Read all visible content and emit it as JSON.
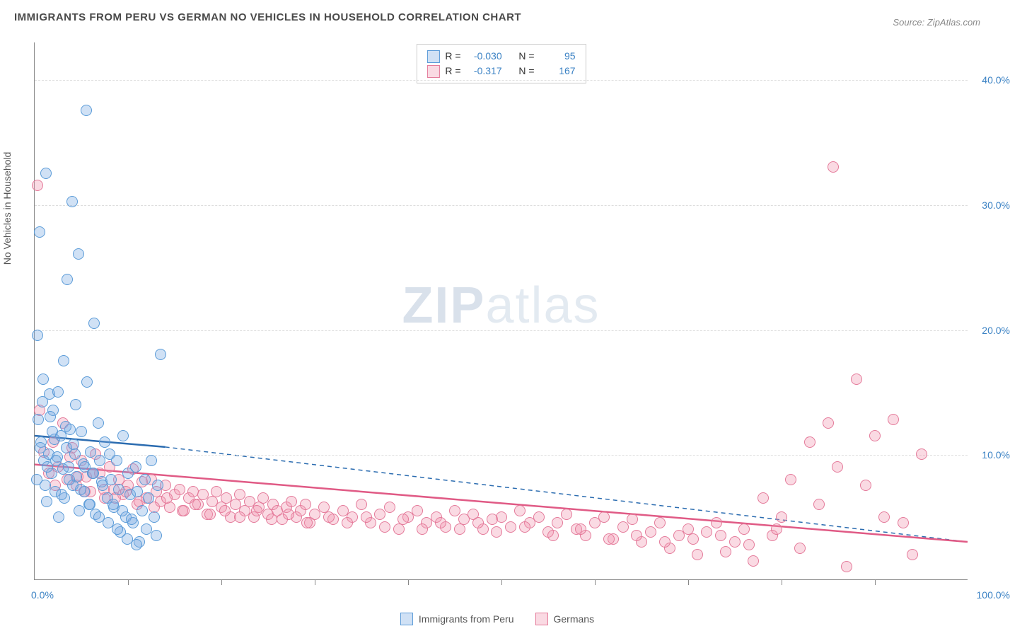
{
  "title": "IMMIGRANTS FROM PERU VS GERMAN NO VEHICLES IN HOUSEHOLD CORRELATION CHART",
  "source": "Source: ZipAtlas.com",
  "y_axis_title": "No Vehicles in Household",
  "watermark_bold": "ZIP",
  "watermark_light": "atlas",
  "x_range": [
    0,
    100
  ],
  "y_range": [
    0,
    43
  ],
  "x_ticks_label_left": "0.0%",
  "x_ticks_label_right": "100.0%",
  "x_tick_positions": [
    0,
    10,
    20,
    30,
    40,
    50,
    60,
    70,
    80,
    90,
    100
  ],
  "y_grid": [
    {
      "val": 10,
      "label": "10.0%"
    },
    {
      "val": 20,
      "label": "20.0%"
    },
    {
      "val": 30,
      "label": "30.0%"
    },
    {
      "val": 40,
      "label": "40.0%"
    }
  ],
  "series": [
    {
      "name": "Immigrants from Peru",
      "key": "peru",
      "fill": "rgba(120,170,225,0.35)",
      "stroke": "#5a9bd8",
      "line_color": "#2b6cb0",
      "r_value": "-0.030",
      "n_value": "95",
      "trend": {
        "x1": 0,
        "y1": 11.5,
        "x2": 14,
        "y2": 10.6,
        "dash_x2": 100,
        "dash_y2": 3.0
      }
    },
    {
      "name": "Germans",
      "key": "german",
      "fill": "rgba(240,150,175,0.35)",
      "stroke": "#e47a9a",
      "line_color": "#e05a85",
      "r_value": "-0.317",
      "n_value": "167",
      "trend": {
        "x1": 0,
        "y1": 9.2,
        "x2": 100,
        "y2": 3.0
      }
    }
  ],
  "legend_label_r": "R =",
  "legend_label_n": "N =",
  "points_peru": [
    [
      0.3,
      19.5
    ],
    [
      0.5,
      27.8
    ],
    [
      0.7,
      11.0
    ],
    [
      0.8,
      14.2
    ],
    [
      1.0,
      9.5
    ],
    [
      1.2,
      32.5
    ],
    [
      1.3,
      6.2
    ],
    [
      1.5,
      10.0
    ],
    [
      1.6,
      14.8
    ],
    [
      1.8,
      8.5
    ],
    [
      2.0,
      13.5
    ],
    [
      2.1,
      11.2
    ],
    [
      2.2,
      7.0
    ],
    [
      2.4,
      9.8
    ],
    [
      2.5,
      15.0
    ],
    [
      2.6,
      5.0
    ],
    [
      2.8,
      11.5
    ],
    [
      3.0,
      8.8
    ],
    [
      3.1,
      17.5
    ],
    [
      3.2,
      6.5
    ],
    [
      3.4,
      10.5
    ],
    [
      3.5,
      24.0
    ],
    [
      3.6,
      9.0
    ],
    [
      3.8,
      12.0
    ],
    [
      4.0,
      30.2
    ],
    [
      4.1,
      7.5
    ],
    [
      4.2,
      10.8
    ],
    [
      4.4,
      14.0
    ],
    [
      4.5,
      8.2
    ],
    [
      4.7,
      26.0
    ],
    [
      4.8,
      5.5
    ],
    [
      5.0,
      11.8
    ],
    [
      5.2,
      9.2
    ],
    [
      5.3,
      7.0
    ],
    [
      5.5,
      37.5
    ],
    [
      5.6,
      15.8
    ],
    [
      5.8,
      6.0
    ],
    [
      6.0,
      10.2
    ],
    [
      6.2,
      8.5
    ],
    [
      6.4,
      20.5
    ],
    [
      6.5,
      5.2
    ],
    [
      6.8,
      12.5
    ],
    [
      7.0,
      9.5
    ],
    [
      7.2,
      7.8
    ],
    [
      7.5,
      11.0
    ],
    [
      7.8,
      6.5
    ],
    [
      8.0,
      10.0
    ],
    [
      8.2,
      8.0
    ],
    [
      8.5,
      5.8
    ],
    [
      8.8,
      9.5
    ],
    [
      9.0,
      7.2
    ],
    [
      9.2,
      3.8
    ],
    [
      9.5,
      11.5
    ],
    [
      9.8,
      5.0
    ],
    [
      10.0,
      8.5
    ],
    [
      10.2,
      6.8
    ],
    [
      10.5,
      4.5
    ],
    [
      10.8,
      9.0
    ],
    [
      11.0,
      7.0
    ],
    [
      11.2,
      3.0
    ],
    [
      11.5,
      5.5
    ],
    [
      11.8,
      8.0
    ],
    [
      12.0,
      4.0
    ],
    [
      12.2,
      6.5
    ],
    [
      12.5,
      9.5
    ],
    [
      12.8,
      5.0
    ],
    [
      13.0,
      3.5
    ],
    [
      13.2,
      7.5
    ],
    [
      13.5,
      18.0
    ],
    [
      0.4,
      12.8
    ],
    [
      0.9,
      16.0
    ],
    [
      1.4,
      9.0
    ],
    [
      1.9,
      11.8
    ],
    [
      0.2,
      8.0
    ],
    [
      0.6,
      10.5
    ],
    [
      1.1,
      7.5
    ],
    [
      1.7,
      13.0
    ],
    [
      2.3,
      9.5
    ],
    [
      2.9,
      6.8
    ],
    [
      3.3,
      12.2
    ],
    [
      3.7,
      8.0
    ],
    [
      4.3,
      10.0
    ],
    [
      4.9,
      7.2
    ],
    [
      5.4,
      9.0
    ],
    [
      5.9,
      6.0
    ],
    [
      6.3,
      8.5
    ],
    [
      6.9,
      5.0
    ],
    [
      7.3,
      7.5
    ],
    [
      7.9,
      4.5
    ],
    [
      8.4,
      6.0
    ],
    [
      8.9,
      4.0
    ],
    [
      9.4,
      5.5
    ],
    [
      9.9,
      3.2
    ],
    [
      10.4,
      4.8
    ],
    [
      10.9,
      2.8
    ]
  ],
  "points_german": [
    [
      0.3,
      31.5
    ],
    [
      0.5,
      13.5
    ],
    [
      1.0,
      10.2
    ],
    [
      1.5,
      8.5
    ],
    [
      2.0,
      11.0
    ],
    [
      2.5,
      9.0
    ],
    [
      3.0,
      12.5
    ],
    [
      3.5,
      8.0
    ],
    [
      4.0,
      10.5
    ],
    [
      4.5,
      7.5
    ],
    [
      5.0,
      9.5
    ],
    [
      5.5,
      8.2
    ],
    [
      6.0,
      7.0
    ],
    [
      6.5,
      10.0
    ],
    [
      7.0,
      8.5
    ],
    [
      7.5,
      6.5
    ],
    [
      8.0,
      9.0
    ],
    [
      8.5,
      7.2
    ],
    [
      9.0,
      8.0
    ],
    [
      9.5,
      6.8
    ],
    [
      10.0,
      7.5
    ],
    [
      10.5,
      8.8
    ],
    [
      11.0,
      6.0
    ],
    [
      11.5,
      7.8
    ],
    [
      12.0,
      6.5
    ],
    [
      12.5,
      8.0
    ],
    [
      13.0,
      7.0
    ],
    [
      13.5,
      6.2
    ],
    [
      14.0,
      7.5
    ],
    [
      14.5,
      5.8
    ],
    [
      15.0,
      6.8
    ],
    [
      15.5,
      7.2
    ],
    [
      16.0,
      5.5
    ],
    [
      16.5,
      6.5
    ],
    [
      17.0,
      7.0
    ],
    [
      17.5,
      6.0
    ],
    [
      18.0,
      6.8
    ],
    [
      18.5,
      5.2
    ],
    [
      19.0,
      6.2
    ],
    [
      19.5,
      7.0
    ],
    [
      20.0,
      5.8
    ],
    [
      20.5,
      6.5
    ],
    [
      21.0,
      5.0
    ],
    [
      21.5,
      6.0
    ],
    [
      22.0,
      6.8
    ],
    [
      22.5,
      5.5
    ],
    [
      23.0,
      6.2
    ],
    [
      23.5,
      5.0
    ],
    [
      24.0,
      5.8
    ],
    [
      24.5,
      6.5
    ],
    [
      25.0,
      5.2
    ],
    [
      25.5,
      6.0
    ],
    [
      26.0,
      5.5
    ],
    [
      26.5,
      4.8
    ],
    [
      27.0,
      5.8
    ],
    [
      27.5,
      6.2
    ],
    [
      28.0,
      5.0
    ],
    [
      28.5,
      5.5
    ],
    [
      29.0,
      6.0
    ],
    [
      29.5,
      4.5
    ],
    [
      30.0,
      5.2
    ],
    [
      31.0,
      5.8
    ],
    [
      32.0,
      4.8
    ],
    [
      33.0,
      5.5
    ],
    [
      34.0,
      5.0
    ],
    [
      35.0,
      6.0
    ],
    [
      36.0,
      4.5
    ],
    [
      37.0,
      5.2
    ],
    [
      38.0,
      5.8
    ],
    [
      39.0,
      4.0
    ],
    [
      40.0,
      5.0
    ],
    [
      41.0,
      5.5
    ],
    [
      42.0,
      4.5
    ],
    [
      43.0,
      5.0
    ],
    [
      44.0,
      4.2
    ],
    [
      45.0,
      5.5
    ],
    [
      46.0,
      4.8
    ],
    [
      47.0,
      5.2
    ],
    [
      48.0,
      4.0
    ],
    [
      49.0,
      4.8
    ],
    [
      50.0,
      5.0
    ],
    [
      51.0,
      4.2
    ],
    [
      52.0,
      5.5
    ],
    [
      53.0,
      4.5
    ],
    [
      54.0,
      5.0
    ],
    [
      55.0,
      3.8
    ],
    [
      56.0,
      4.5
    ],
    [
      57.0,
      5.2
    ],
    [
      58.0,
      4.0
    ],
    [
      59.0,
      3.5
    ],
    [
      60.0,
      4.5
    ],
    [
      61.0,
      5.0
    ],
    [
      62.0,
      3.2
    ],
    [
      63.0,
      4.2
    ],
    [
      64.0,
      4.8
    ],
    [
      65.0,
      3.0
    ],
    [
      66.0,
      3.8
    ],
    [
      67.0,
      4.5
    ],
    [
      68.0,
      2.5
    ],
    [
      69.0,
      3.5
    ],
    [
      70.0,
      4.0
    ],
    [
      71.0,
      2.0
    ],
    [
      72.0,
      3.8
    ],
    [
      73.0,
      4.5
    ],
    [
      74.0,
      2.2
    ],
    [
      75.0,
      3.0
    ],
    [
      76.0,
      4.0
    ],
    [
      77.0,
      1.5
    ],
    [
      78.0,
      6.5
    ],
    [
      79.0,
      3.5
    ],
    [
      80.0,
      5.0
    ],
    [
      81.0,
      8.0
    ],
    [
      82.0,
      2.5
    ],
    [
      83.0,
      11.0
    ],
    [
      84.0,
      6.0
    ],
    [
      85.0,
      12.5
    ],
    [
      86.0,
      9.0
    ],
    [
      87.0,
      1.0
    ],
    [
      88.0,
      16.0
    ],
    [
      89.0,
      7.5
    ],
    [
      90.0,
      11.5
    ],
    [
      91.0,
      5.0
    ],
    [
      92.0,
      12.8
    ],
    [
      93.0,
      4.5
    ],
    [
      94.0,
      2.0
    ],
    [
      95.0,
      10.0
    ],
    [
      85.5,
      33.0
    ],
    [
      2.2,
      7.5
    ],
    [
      3.8,
      9.8
    ],
    [
      4.6,
      8.2
    ],
    [
      5.4,
      7.0
    ],
    [
      6.2,
      8.5
    ],
    [
      7.4,
      7.2
    ],
    [
      8.6,
      6.5
    ],
    [
      9.8,
      7.0
    ],
    [
      11.2,
      6.2
    ],
    [
      12.8,
      5.8
    ],
    [
      14.2,
      6.5
    ],
    [
      15.8,
      5.5
    ],
    [
      17.2,
      6.0
    ],
    [
      18.8,
      5.2
    ],
    [
      20.4,
      5.5
    ],
    [
      22.0,
      5.0
    ],
    [
      23.8,
      5.5
    ],
    [
      25.4,
      4.8
    ],
    [
      27.2,
      5.2
    ],
    [
      29.2,
      4.5
    ],
    [
      31.5,
      5.0
    ],
    [
      33.5,
      4.5
    ],
    [
      35.5,
      5.0
    ],
    [
      37.5,
      4.2
    ],
    [
      39.5,
      4.8
    ],
    [
      41.5,
      4.0
    ],
    [
      43.5,
      4.5
    ],
    [
      45.5,
      4.0
    ],
    [
      47.5,
      4.5
    ],
    [
      49.5,
      3.8
    ],
    [
      52.5,
      4.2
    ],
    [
      55.5,
      3.5
    ],
    [
      58.5,
      4.0
    ],
    [
      61.5,
      3.2
    ],
    [
      64.5,
      3.5
    ],
    [
      67.5,
      3.0
    ],
    [
      70.5,
      3.2
    ],
    [
      73.5,
      3.5
    ],
    [
      76.5,
      2.8
    ],
    [
      79.5,
      4.0
    ]
  ]
}
